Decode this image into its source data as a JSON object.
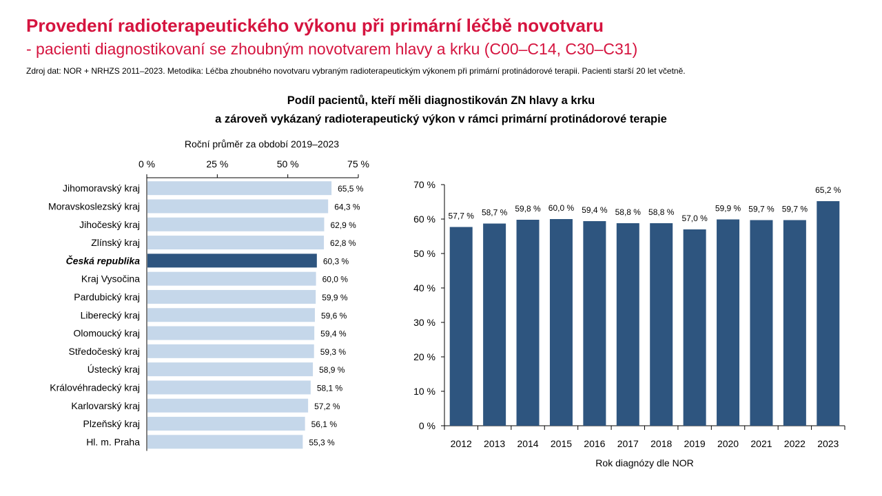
{
  "header": {
    "title": "Provedení radioterapeutického výkonu při primární léčbě novotvaru",
    "subtitle": "- pacienti diagnostikovaní se zhoubným novotvarem hlavy a krku (C00–C14, C30–C31)",
    "source": "Zdroj dat: NOR + NRHZS 2011–2023. Metodika: Léčba zhoubného novotvaru vybraným radioterapeutickým výkonem při primární protinádorové terapii. Pacienti starší 20 let včetně.",
    "chart_title_line1": "Podíl pacientů, kteří měli diagnostikován ZN hlavy a krku",
    "chart_title_line2": "a zároveň vykázaný radioterapeutický výkon v rámci primární protinádorové terapie"
  },
  "colors": {
    "accent": "#d5143f",
    "region_bar": "#c5d7ea",
    "highlight_bar": "#2e557f",
    "year_bar": "#2e557f"
  },
  "chart_data": [
    {
      "type": "bar",
      "orientation": "horizontal",
      "title": "Roční průměr za období 2019–2023",
      "xlim": [
        0,
        75
      ],
      "ticks": [
        0,
        25,
        50,
        75
      ],
      "tick_labels": [
        "0 %",
        "25 %",
        "50 %",
        "75 %"
      ],
      "highlight": "Česká republika",
      "categories": [
        "Jihomoravský kraj",
        "Moravskoslezský kraj",
        "Jihočeský kraj",
        "Zlínský kraj",
        "Česká republika",
        "Kraj Vysočina",
        "Pardubický kraj",
        "Liberecký kraj",
        "Olomoucký kraj",
        "Středočeský kraj",
        "Ústecký kraj",
        "Královéhradecký kraj",
        "Karlovarský kraj",
        "Plzeňský kraj",
        "Hl. m. Praha"
      ],
      "values": [
        65.5,
        64.3,
        62.9,
        62.8,
        60.3,
        60.0,
        59.9,
        59.6,
        59.4,
        59.3,
        58.9,
        58.1,
        57.2,
        56.1,
        55.3
      ],
      "value_labels": [
        "65,5 %",
        "64,3 %",
        "62,9 %",
        "62,8 %",
        "60,3 %",
        "60,0 %",
        "59,9 %",
        "59,6 %",
        "59,4 %",
        "59,3 %",
        "58,9 %",
        "58,1 %",
        "57,2 %",
        "56,1 %",
        "55,3 %"
      ]
    },
    {
      "type": "bar",
      "orientation": "vertical",
      "xlabel": "Rok diagnózy dle NOR",
      "ylim": [
        0,
        70
      ],
      "ticks": [
        0,
        10,
        20,
        30,
        40,
        50,
        60,
        70
      ],
      "tick_labels": [
        "0 %",
        "10 %",
        "20 %",
        "30 %",
        "40 %",
        "50 %",
        "60 %",
        "70 %"
      ],
      "categories": [
        "2012",
        "2013",
        "2014",
        "2015",
        "2016",
        "2017",
        "2018",
        "2019",
        "2020",
        "2021",
        "2022",
        "2023"
      ],
      "values": [
        57.7,
        58.7,
        59.8,
        60.0,
        59.4,
        58.8,
        58.8,
        57.0,
        59.9,
        59.7,
        59.7,
        65.2
      ],
      "value_labels": [
        "57,7 %",
        "58,7 %",
        "59,8 %",
        "60,0 %",
        "59,4 %",
        "58,8 %",
        "58,8 %",
        "57,0 %",
        "59,9 %",
        "59,7 %",
        "59,7 %",
        "65,2 %"
      ]
    }
  ]
}
